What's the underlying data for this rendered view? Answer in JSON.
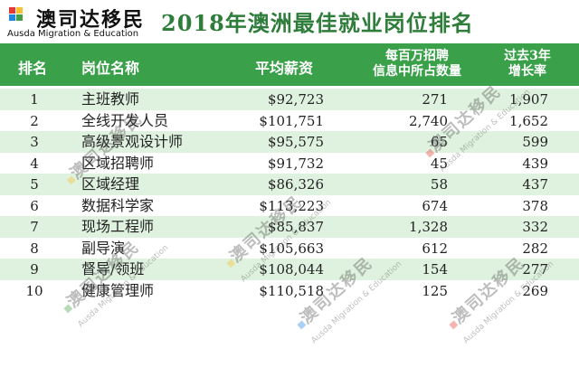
{
  "brand": {
    "name_cn": "澳司达移民",
    "name_en": "Ausda Migration & Education",
    "mark_colors": [
      "#e53935",
      "#fbc02d",
      "#1e88e5",
      "#43a047"
    ],
    "logo_icon": "colored-squares-logo-icon"
  },
  "title": "2018年澳洲最佳就业岗位排名",
  "colors": {
    "header_bg": "#3aa04a",
    "row_shade": "#dff2df",
    "title": "#2e7d3a"
  },
  "table": {
    "headers": {
      "rank": "排名",
      "title": "岗位名称",
      "salary": "平均薪资",
      "count_line1": "每百万招聘",
      "count_line2": "信息中所占数量",
      "growth_line1": "过去3年",
      "growth_line2": "增长率"
    },
    "rows": [
      {
        "rank": "1",
        "title": "主班教师",
        "salary": "$92,723",
        "count": "271",
        "growth": "1,907"
      },
      {
        "rank": "2",
        "title": "全线开发人员",
        "salary": "$101,751",
        "count": "2,740",
        "growth": "1,652"
      },
      {
        "rank": "3",
        "title": "高级景观设计师",
        "salary": "$95,575",
        "count": "65",
        "growth": "599"
      },
      {
        "rank": "4",
        "title": "区域招聘师",
        "salary": "$91,732",
        "count": "45",
        "growth": "439"
      },
      {
        "rank": "5",
        "title": "区域经理",
        "salary": "$86,326",
        "count": "58",
        "growth": "437"
      },
      {
        "rank": "6",
        "title": "数据科学家",
        "salary": "$113,223",
        "count": "674",
        "growth": "378"
      },
      {
        "rank": "7",
        "title": "现场工程师",
        "salary": "$85,837",
        "count": "1,328",
        "growth": "332"
      },
      {
        "rank": "8",
        "title": "副导演",
        "salary": "$105,663",
        "count": "612",
        "growth": "282"
      },
      {
        "rank": "9",
        "title": "督导/领班",
        "salary": "$108,044",
        "count": "154",
        "growth": "277"
      },
      {
        "rank": "10",
        "title": "健康管理师",
        "salary": "$110,518",
        "count": "125",
        "growth": "269"
      }
    ]
  }
}
